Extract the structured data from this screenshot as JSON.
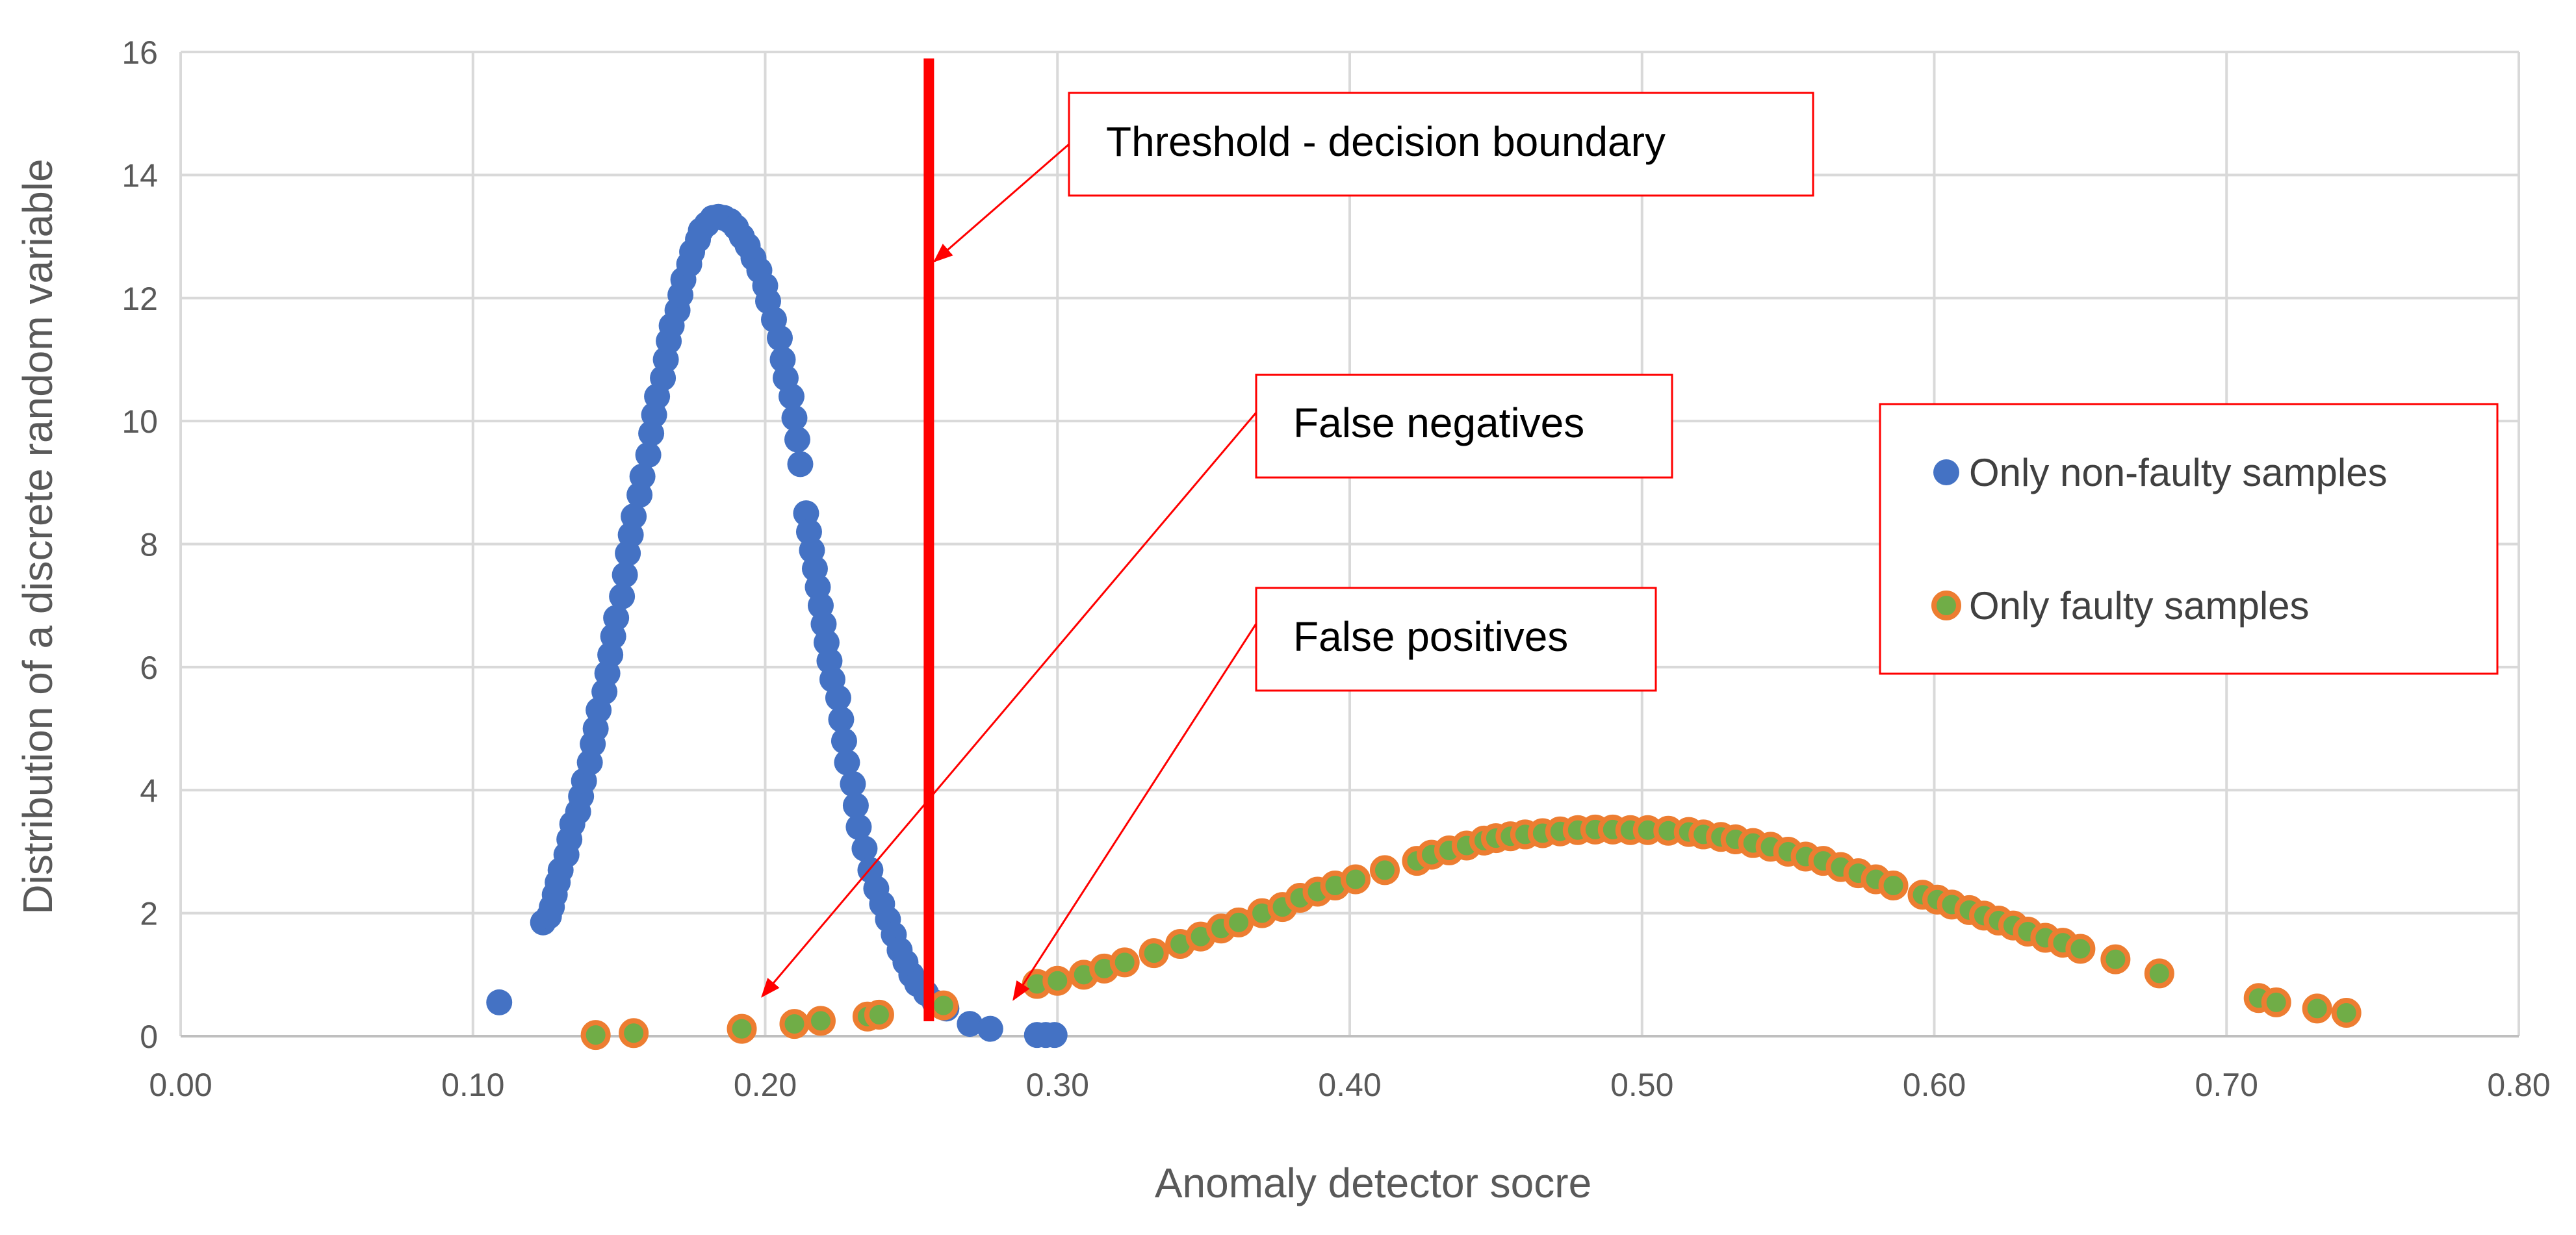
{
  "chart_data": {
    "type": "scatter",
    "title": "",
    "xlabel": "Anomaly detector socre",
    "ylabel": "Distribution of a discrete random variable",
    "xlim": [
      0,
      0.8
    ],
    "ylim": [
      0,
      16
    ],
    "x_ticks": [
      "0.00",
      "0.10",
      "0.20",
      "0.30",
      "0.40",
      "0.50",
      "0.60",
      "0.70",
      "0.80"
    ],
    "y_ticks": [
      "0",
      "2",
      "4",
      "6",
      "8",
      "10",
      "12",
      "14",
      "16"
    ],
    "grid": true,
    "legend_position": "right",
    "threshold": 0.256,
    "series": [
      {
        "name": "Only non-faulty samples",
        "color": "#4472C4",
        "points": [
          [
            0.109,
            0.55
          ],
          [
            0.124,
            1.85
          ],
          [
            0.126,
            1.95
          ],
          [
            0.127,
            2.1
          ],
          [
            0.128,
            2.3
          ],
          [
            0.129,
            2.5
          ],
          [
            0.13,
            2.7
          ],
          [
            0.132,
            2.95
          ],
          [
            0.133,
            3.2
          ],
          [
            0.134,
            3.45
          ],
          [
            0.136,
            3.65
          ],
          [
            0.137,
            3.9
          ],
          [
            0.138,
            4.15
          ],
          [
            0.14,
            4.45
          ],
          [
            0.141,
            4.75
          ],
          [
            0.142,
            5.0
          ],
          [
            0.143,
            5.3
          ],
          [
            0.145,
            5.6
          ],
          [
            0.146,
            5.9
          ],
          [
            0.147,
            6.2
          ],
          [
            0.148,
            6.5
          ],
          [
            0.149,
            6.8
          ],
          [
            0.151,
            7.15
          ],
          [
            0.152,
            7.5
          ],
          [
            0.153,
            7.85
          ],
          [
            0.154,
            8.15
          ],
          [
            0.155,
            8.45
          ],
          [
            0.157,
            8.8
          ],
          [
            0.158,
            9.1
          ],
          [
            0.16,
            9.45
          ],
          [
            0.161,
            9.8
          ],
          [
            0.162,
            10.1
          ],
          [
            0.163,
            10.4
          ],
          [
            0.165,
            10.7
          ],
          [
            0.166,
            11.0
          ],
          [
            0.167,
            11.3
          ],
          [
            0.168,
            11.55
          ],
          [
            0.17,
            11.8
          ],
          [
            0.171,
            12.05
          ],
          [
            0.172,
            12.3
          ],
          [
            0.174,
            12.55
          ],
          [
            0.175,
            12.75
          ],
          [
            0.177,
            12.95
          ],
          [
            0.178,
            13.1
          ],
          [
            0.18,
            13.2
          ],
          [
            0.182,
            13.3
          ],
          [
            0.184,
            13.32
          ],
          [
            0.186,
            13.3
          ],
          [
            0.188,
            13.25
          ],
          [
            0.19,
            13.15
          ],
          [
            0.192,
            13.0
          ],
          [
            0.194,
            12.85
          ],
          [
            0.196,
            12.65
          ],
          [
            0.198,
            12.45
          ],
          [
            0.2,
            12.2
          ],
          [
            0.201,
            11.95
          ],
          [
            0.203,
            11.65
          ],
          [
            0.205,
            11.35
          ],
          [
            0.206,
            11.0
          ],
          [
            0.207,
            10.7
          ],
          [
            0.209,
            10.4
          ],
          [
            0.21,
            10.05
          ],
          [
            0.211,
            9.7
          ],
          [
            0.212,
            9.3
          ],
          [
            0.214,
            8.5
          ],
          [
            0.215,
            8.2
          ],
          [
            0.216,
            7.9
          ],
          [
            0.217,
            7.6
          ],
          [
            0.218,
            7.3
          ],
          [
            0.219,
            7.0
          ],
          [
            0.22,
            6.7
          ],
          [
            0.221,
            6.4
          ],
          [
            0.222,
            6.1
          ],
          [
            0.223,
            5.8
          ],
          [
            0.225,
            5.5
          ],
          [
            0.226,
            5.15
          ],
          [
            0.227,
            4.8
          ],
          [
            0.228,
            4.45
          ],
          [
            0.23,
            4.1
          ],
          [
            0.231,
            3.75
          ],
          [
            0.232,
            3.4
          ],
          [
            0.234,
            3.05
          ],
          [
            0.236,
            2.7
          ],
          [
            0.238,
            2.4
          ],
          [
            0.24,
            2.15
          ],
          [
            0.242,
            1.9
          ],
          [
            0.244,
            1.65
          ],
          [
            0.246,
            1.4
          ],
          [
            0.248,
            1.2
          ],
          [
            0.25,
            1.0
          ],
          [
            0.252,
            0.85
          ],
          [
            0.255,
            0.7
          ],
          [
            0.258,
            0.55
          ],
          [
            0.262,
            0.45
          ],
          [
            0.27,
            0.2
          ],
          [
            0.277,
            0.12
          ],
          [
            0.293,
            0.02
          ],
          [
            0.296,
            0.02
          ],
          [
            0.299,
            0.02
          ]
        ]
      },
      {
        "name": "Only faulty samples",
        "color": "#70AD47",
        "stroke": "#ED7D31",
        "points": [
          [
            0.142,
            0.02
          ],
          [
            0.155,
            0.05
          ],
          [
            0.192,
            0.12
          ],
          [
            0.21,
            0.2
          ],
          [
            0.219,
            0.25
          ],
          [
            0.235,
            0.32
          ],
          [
            0.239,
            0.35
          ],
          [
            0.261,
            0.5
          ],
          [
            0.293,
            0.85
          ],
          [
            0.3,
            0.9
          ],
          [
            0.309,
            1.0
          ],
          [
            0.316,
            1.1
          ],
          [
            0.323,
            1.2
          ],
          [
            0.333,
            1.35
          ],
          [
            0.342,
            1.5
          ],
          [
            0.349,
            1.62
          ],
          [
            0.356,
            1.75
          ],
          [
            0.362,
            1.85
          ],
          [
            0.37,
            2.0
          ],
          [
            0.377,
            2.1
          ],
          [
            0.383,
            2.25
          ],
          [
            0.389,
            2.35
          ],
          [
            0.395,
            2.45
          ],
          [
            0.402,
            2.55
          ],
          [
            0.412,
            2.7
          ],
          [
            0.423,
            2.85
          ],
          [
            0.428,
            2.95
          ],
          [
            0.434,
            3.02
          ],
          [
            0.44,
            3.1
          ],
          [
            0.446,
            3.18
          ],
          [
            0.45,
            3.22
          ],
          [
            0.455,
            3.25
          ],
          [
            0.46,
            3.28
          ],
          [
            0.466,
            3.3
          ],
          [
            0.472,
            3.33
          ],
          [
            0.478,
            3.35
          ],
          [
            0.484,
            3.36
          ],
          [
            0.49,
            3.36
          ],
          [
            0.496,
            3.35
          ],
          [
            0.502,
            3.35
          ],
          [
            0.509,
            3.34
          ],
          [
            0.516,
            3.32
          ],
          [
            0.521,
            3.28
          ],
          [
            0.527,
            3.24
          ],
          [
            0.532,
            3.2
          ],
          [
            0.538,
            3.14
          ],
          [
            0.544,
            3.08
          ],
          [
            0.55,
            3.0
          ],
          [
            0.556,
            2.92
          ],
          [
            0.562,
            2.85
          ],
          [
            0.568,
            2.75
          ],
          [
            0.574,
            2.65
          ],
          [
            0.58,
            2.55
          ],
          [
            0.586,
            2.45
          ],
          [
            0.596,
            2.3
          ],
          [
            0.601,
            2.22
          ],
          [
            0.606,
            2.14
          ],
          [
            0.612,
            2.05
          ],
          [
            0.617,
            1.96
          ],
          [
            0.622,
            1.88
          ],
          [
            0.627,
            1.8
          ],
          [
            0.632,
            1.7
          ],
          [
            0.638,
            1.6
          ],
          [
            0.644,
            1.52
          ],
          [
            0.65,
            1.42
          ],
          [
            0.662,
            1.25
          ],
          [
            0.677,
            1.02
          ],
          [
            0.711,
            0.62
          ],
          [
            0.717,
            0.55
          ],
          [
            0.731,
            0.45
          ],
          [
            0.741,
            0.38
          ]
        ]
      }
    ],
    "annotations": [
      {
        "text": "Threshold - decision boundary",
        "target": [
          0.258,
          12.6
        ]
      },
      {
        "text": "False negatives",
        "target": [
          0.199,
          0.65
        ]
      },
      {
        "text": "False positives",
        "target": [
          0.285,
          0.6
        ]
      }
    ]
  }
}
